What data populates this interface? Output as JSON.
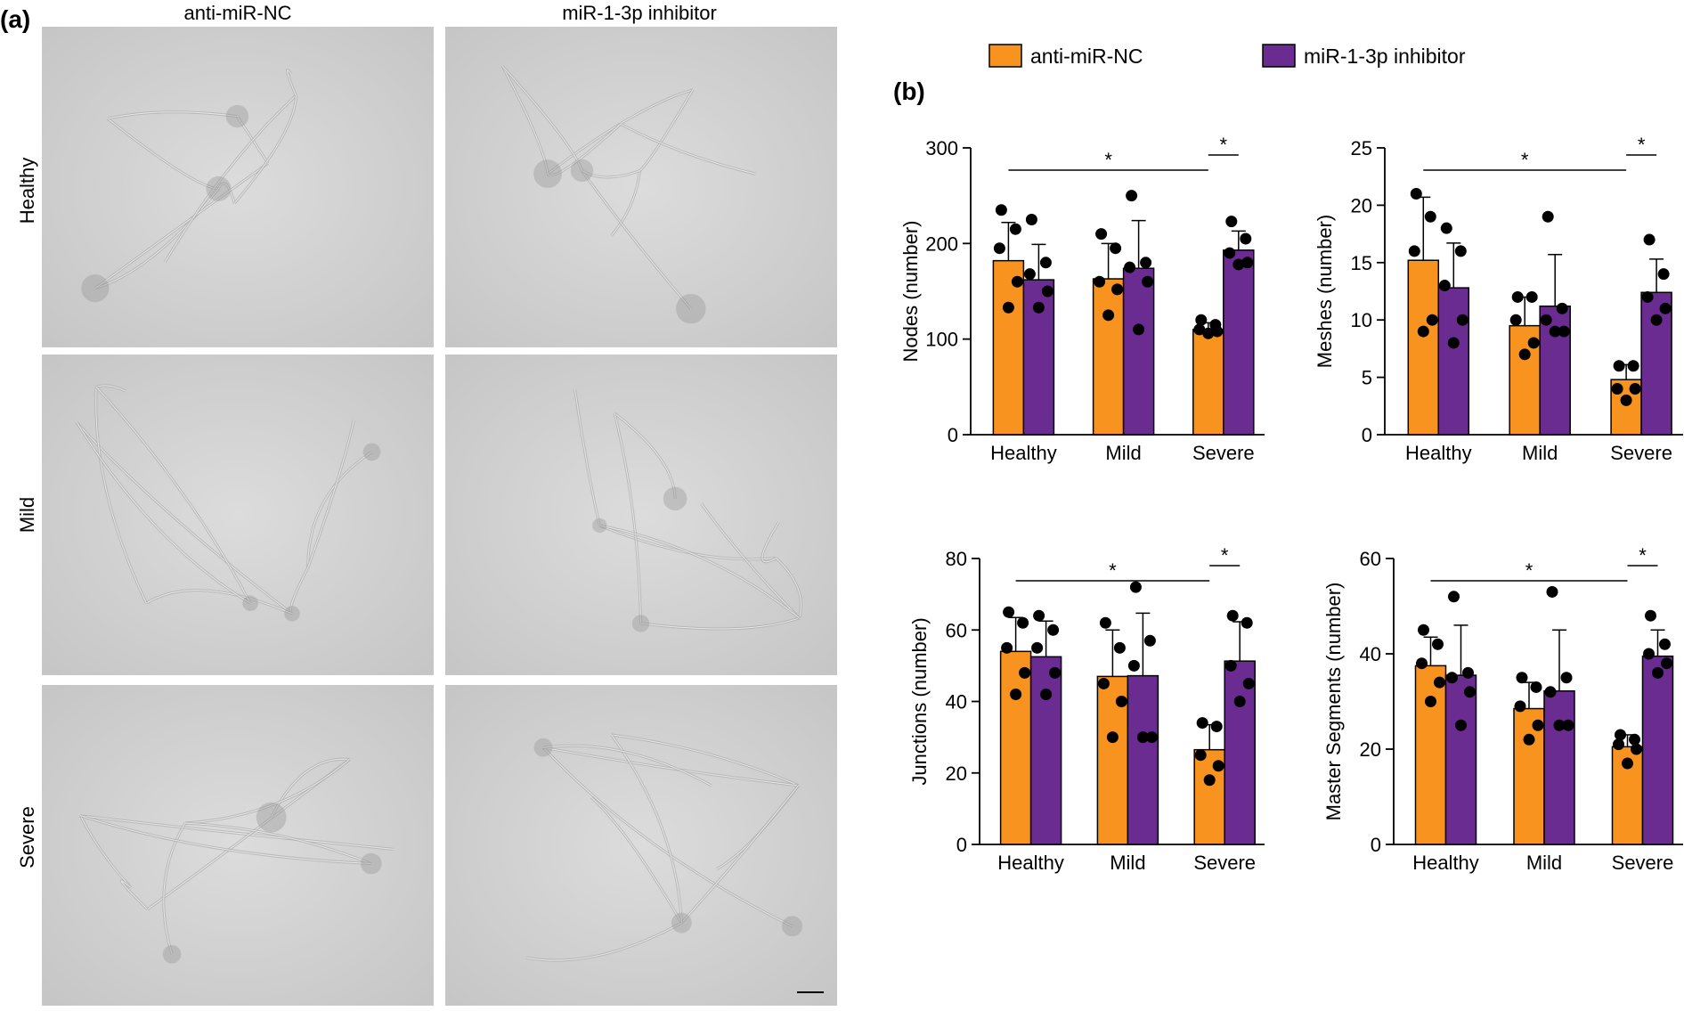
{
  "panel_a": {
    "label": "(a)",
    "columns": [
      "anti-miR-NC",
      "miR-1-3p inhibitor"
    ],
    "rows": [
      "Healthy",
      "Mild",
      "Severe"
    ]
  },
  "panel_b": {
    "label": "(b)",
    "legend": [
      {
        "name": "anti-miR-NC",
        "color": "#F7931E"
      },
      {
        "name": "miR-1-3p inhibitor",
        "color": "#6B2C91"
      }
    ]
  },
  "chart_data": [
    {
      "type": "bar",
      "categories": [
        "Healthy",
        "Mild",
        "Severe"
      ],
      "ylabel": "Nodes (number)",
      "ylim": [
        0,
        300
      ],
      "yticks": [
        0,
        100,
        200,
        300
      ],
      "series": [
        {
          "name": "anti-miR-NC",
          "values": [
            182,
            163,
            110
          ],
          "errors": [
            40,
            37,
            7
          ],
          "points": [
            [
              235,
              215,
              195,
              160,
              133
            ],
            [
              210,
              195,
              160,
              152,
              125
            ],
            [
              120,
              115,
              110,
              108,
              106
            ]
          ]
        },
        {
          "name": "miR-1-3p inhibitor",
          "values": [
            162,
            174,
            193
          ],
          "errors": [
            37,
            50,
            20
          ],
          "points": [
            [
              225,
              180,
              168,
              150,
              133
            ],
            [
              250,
              180,
              175,
              160,
              110
            ],
            [
              223,
              205,
              190,
              180,
              178
            ]
          ]
        }
      ],
      "significance": [
        {
          "from": 0,
          "to": 4,
          "label": "*"
        },
        {
          "from": 4,
          "to": 5,
          "label": "*"
        }
      ]
    },
    {
      "type": "bar",
      "categories": [
        "Healthy",
        "Mild",
        "Severe"
      ],
      "ylabel": "Meshes (number)",
      "ylim": [
        0,
        25
      ],
      "yticks": [
        0,
        5,
        10,
        15,
        20,
        25
      ],
      "series": [
        {
          "name": "anti-miR-NC",
          "values": [
            15.2,
            9.5,
            4.8
          ],
          "errors": [
            5.5,
            2.5,
            1.3
          ],
          "points": [
            [
              21,
              19,
              16,
              10,
              9
            ],
            [
              12,
              12,
              10,
              8,
              7
            ],
            [
              6,
              6,
              4,
              4,
              3
            ]
          ]
        },
        {
          "name": "miR-1-3p inhibitor",
          "values": [
            12.8,
            11.2,
            12.4
          ],
          "errors": [
            3.9,
            4.5,
            2.9
          ],
          "points": [
            [
              18,
              16,
              13,
              10,
              8
            ],
            [
              19,
              11,
              10,
              9,
              9
            ],
            [
              17,
              14,
              12,
              11,
              10
            ]
          ]
        }
      ],
      "significance": [
        {
          "from": 0,
          "to": 4,
          "label": "*"
        },
        {
          "from": 4,
          "to": 5,
          "label": "*"
        }
      ]
    },
    {
      "type": "bar",
      "categories": [
        "Healthy",
        "Mild",
        "Severe"
      ],
      "ylabel": "Junctions (number)",
      "ylim": [
        0,
        80
      ],
      "yticks": [
        0,
        20,
        40,
        60,
        80
      ],
      "series": [
        {
          "name": "anti-miR-NC",
          "values": [
            54,
            47,
            26.5
          ],
          "errors": [
            9.5,
            13,
            7
          ],
          "points": [
            [
              65,
              62,
              55,
              48,
              42
            ],
            [
              62,
              55,
              45,
              40,
              30
            ],
            [
              34,
              33,
              25,
              22,
              18
            ]
          ]
        },
        {
          "name": "miR-1-3p inhibitor",
          "values": [
            52.5,
            47.2,
            51.3
          ],
          "errors": [
            10,
            17.5,
            11
          ],
          "points": [
            [
              64,
              60,
              55,
              48,
              42
            ],
            [
              72,
              57,
              50,
              30,
              30
            ],
            [
              64,
              62,
              50,
              45,
              40
            ]
          ]
        }
      ],
      "significance": [
        {
          "from": 0,
          "to": 4,
          "label": "*"
        },
        {
          "from": 4,
          "to": 5,
          "label": "*"
        }
      ]
    },
    {
      "type": "bar",
      "categories": [
        "Healthy",
        "Mild",
        "Severe"
      ],
      "ylabel": "Master Segments (number)",
      "ylim": [
        0,
        60
      ],
      "yticks": [
        0,
        20,
        40,
        60
      ],
      "series": [
        {
          "name": "anti-miR-NC",
          "values": [
            37.5,
            28.5,
            20.5
          ],
          "errors": [
            6,
            5.5,
            2.5
          ],
          "points": [
            [
              45,
              42,
              38,
              34,
              30
            ],
            [
              35,
              33,
              29,
              25,
              22
            ],
            [
              23,
              22,
              21,
              20,
              17
            ]
          ]
        },
        {
          "name": "miR-1-3p inhibitor",
          "values": [
            35.5,
            32.2,
            39.5
          ],
          "errors": [
            10.5,
            12.8,
            5.5
          ],
          "points": [
            [
              52,
              36,
              35,
              32,
              25
            ],
            [
              53,
              35,
              32,
              25,
              25
            ],
            [
              48,
              42,
              40,
              38,
              36
            ]
          ]
        }
      ],
      "significance": [
        {
          "from": 0,
          "to": 4,
          "label": "*"
        },
        {
          "from": 4,
          "to": 5,
          "label": "*"
        }
      ]
    }
  ]
}
